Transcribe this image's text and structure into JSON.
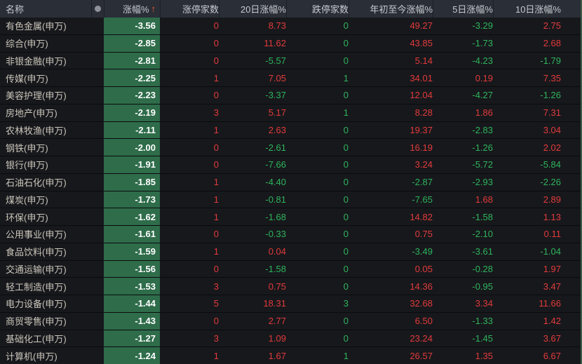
{
  "table": {
    "columns": [
      {
        "key": "name",
        "label": "名称"
      },
      {
        "key": "dot",
        "label": "●"
      },
      {
        "key": "change",
        "label": "涨幅%",
        "sort_arrow": "↑"
      },
      {
        "key": "limit_up",
        "label": "涨停家数",
        "color_rule": "always_up"
      },
      {
        "key": "chg20",
        "label": "20日涨幅%",
        "color_rule": "sign"
      },
      {
        "key": "limit_down",
        "label": "跌停家数",
        "color_rule": "always_down"
      },
      {
        "key": "ytd",
        "label": "年初至今涨幅%",
        "color_rule": "sign"
      },
      {
        "key": "chg5",
        "label": "5日涨幅%",
        "color_rule": "sign"
      },
      {
        "key": "chg10",
        "label": "10日涨幅%",
        "color_rule": "sign"
      }
    ],
    "rows": [
      {
        "name": "有色金属(申万)",
        "change": "-3.56",
        "limit_up": "0",
        "chg20": "8.73",
        "limit_down": "0",
        "ytd": "49.27",
        "chg5": "-3.29",
        "chg10": "2.75"
      },
      {
        "name": "综合(申万)",
        "change": "-2.85",
        "limit_up": "0",
        "chg20": "11.62",
        "limit_down": "0",
        "ytd": "43.85",
        "chg5": "-1.73",
        "chg10": "2.68"
      },
      {
        "name": "非银金融(申万)",
        "change": "-2.81",
        "limit_up": "0",
        "chg20": "-5.57",
        "limit_down": "0",
        "ytd": "5.14",
        "chg5": "-4.23",
        "chg10": "-1.79"
      },
      {
        "name": "传媒(申万)",
        "change": "-2.25",
        "limit_up": "1",
        "chg20": "7.05",
        "limit_down": "1",
        "ytd": "34.01",
        "chg5": "0.19",
        "chg10": "7.35"
      },
      {
        "name": "美容护理(申万)",
        "change": "-2.23",
        "limit_up": "0",
        "chg20": "-3.37",
        "limit_down": "0",
        "ytd": "12.04",
        "chg5": "-4.27",
        "chg10": "-1.26"
      },
      {
        "name": "房地产(申万)",
        "change": "-2.19",
        "limit_up": "3",
        "chg20": "5.17",
        "limit_down": "1",
        "ytd": "8.28",
        "chg5": "1.86",
        "chg10": "7.31"
      },
      {
        "name": "农林牧渔(申万)",
        "change": "-2.11",
        "limit_up": "1",
        "chg20": "2.63",
        "limit_down": "0",
        "ytd": "19.37",
        "chg5": "-2.83",
        "chg10": "3.04"
      },
      {
        "name": "钢铁(申万)",
        "change": "-2.00",
        "limit_up": "0",
        "chg20": "-2.61",
        "limit_down": "0",
        "ytd": "16.19",
        "chg5": "-1.26",
        "chg10": "2.02"
      },
      {
        "name": "银行(申万)",
        "change": "-1.91",
        "limit_up": "0",
        "chg20": "-7.66",
        "limit_down": "0",
        "ytd": "3.24",
        "chg5": "-5.72",
        "chg10": "-5.84"
      },
      {
        "name": "石油石化(申万)",
        "change": "-1.85",
        "limit_up": "1",
        "chg20": "-4.40",
        "limit_down": "0",
        "ytd": "-2.87",
        "chg5": "-2.93",
        "chg10": "-2.26"
      },
      {
        "name": "煤炭(申万)",
        "change": "-1.73",
        "limit_up": "1",
        "chg20": "-0.81",
        "limit_down": "0",
        "ytd": "-7.65",
        "chg5": "1.68",
        "chg10": "2.89"
      },
      {
        "name": "环保(申万)",
        "change": "-1.62",
        "limit_up": "1",
        "chg20": "-1.68",
        "limit_down": "0",
        "ytd": "14.82",
        "chg5": "-1.58",
        "chg10": "1.13"
      },
      {
        "name": "公用事业(申万)",
        "change": "-1.61",
        "limit_up": "0",
        "chg20": "-0.33",
        "limit_down": "0",
        "ytd": "0.75",
        "chg5": "-2.10",
        "chg10": "0.11"
      },
      {
        "name": "食品饮料(申万)",
        "change": "-1.59",
        "limit_up": "1",
        "chg20": "0.04",
        "limit_down": "0",
        "ytd": "-3.49",
        "chg5": "-3.61",
        "chg10": "-1.04"
      },
      {
        "name": "交通运输(申万)",
        "change": "-1.56",
        "limit_up": "0",
        "chg20": "-1.58",
        "limit_down": "0",
        "ytd": "0.05",
        "chg5": "-0.28",
        "chg10": "1.97"
      },
      {
        "name": "轻工制造(申万)",
        "change": "-1.53",
        "limit_up": "3",
        "chg20": "0.75",
        "limit_down": "0",
        "ytd": "14.36",
        "chg5": "-0.95",
        "chg10": "3.47"
      },
      {
        "name": "电力设备(申万)",
        "change": "-1.44",
        "limit_up": "5",
        "chg20": "18.31",
        "limit_down": "3",
        "ytd": "32.68",
        "chg5": "3.34",
        "chg10": "11.66"
      },
      {
        "name": "商贸零售(申万)",
        "change": "-1.43",
        "limit_up": "0",
        "chg20": "2.77",
        "limit_down": "0",
        "ytd": "6.50",
        "chg5": "-1.33",
        "chg10": "1.42"
      },
      {
        "name": "基础化工(申万)",
        "change": "-1.27",
        "limit_up": "3",
        "chg20": "1.09",
        "limit_down": "0",
        "ytd": "23.24",
        "chg5": "-1.45",
        "chg10": "3.67"
      },
      {
        "name": "计算机(申万)",
        "change": "-1.24",
        "limit_up": "1",
        "chg20": "1.67",
        "limit_down": "1",
        "ytd": "26.57",
        "chg5": "1.35",
        "chg10": "6.67"
      }
    ]
  },
  "colors": {
    "up": "#e23b3b",
    "down": "#2eb45c",
    "change_cell_bg": "#2e6c4a",
    "change_cell_text": "#ffffff",
    "header_bg": "#2a2e37",
    "header_text": "#c6c9cf",
    "row_bg": "#17181c",
    "separator": "#0a0b0d",
    "name_text": "#cbc6bb",
    "sort_arrow": "#ee5b28",
    "dot": "#8e9298",
    "edge_strip": "#3c5c48"
  }
}
